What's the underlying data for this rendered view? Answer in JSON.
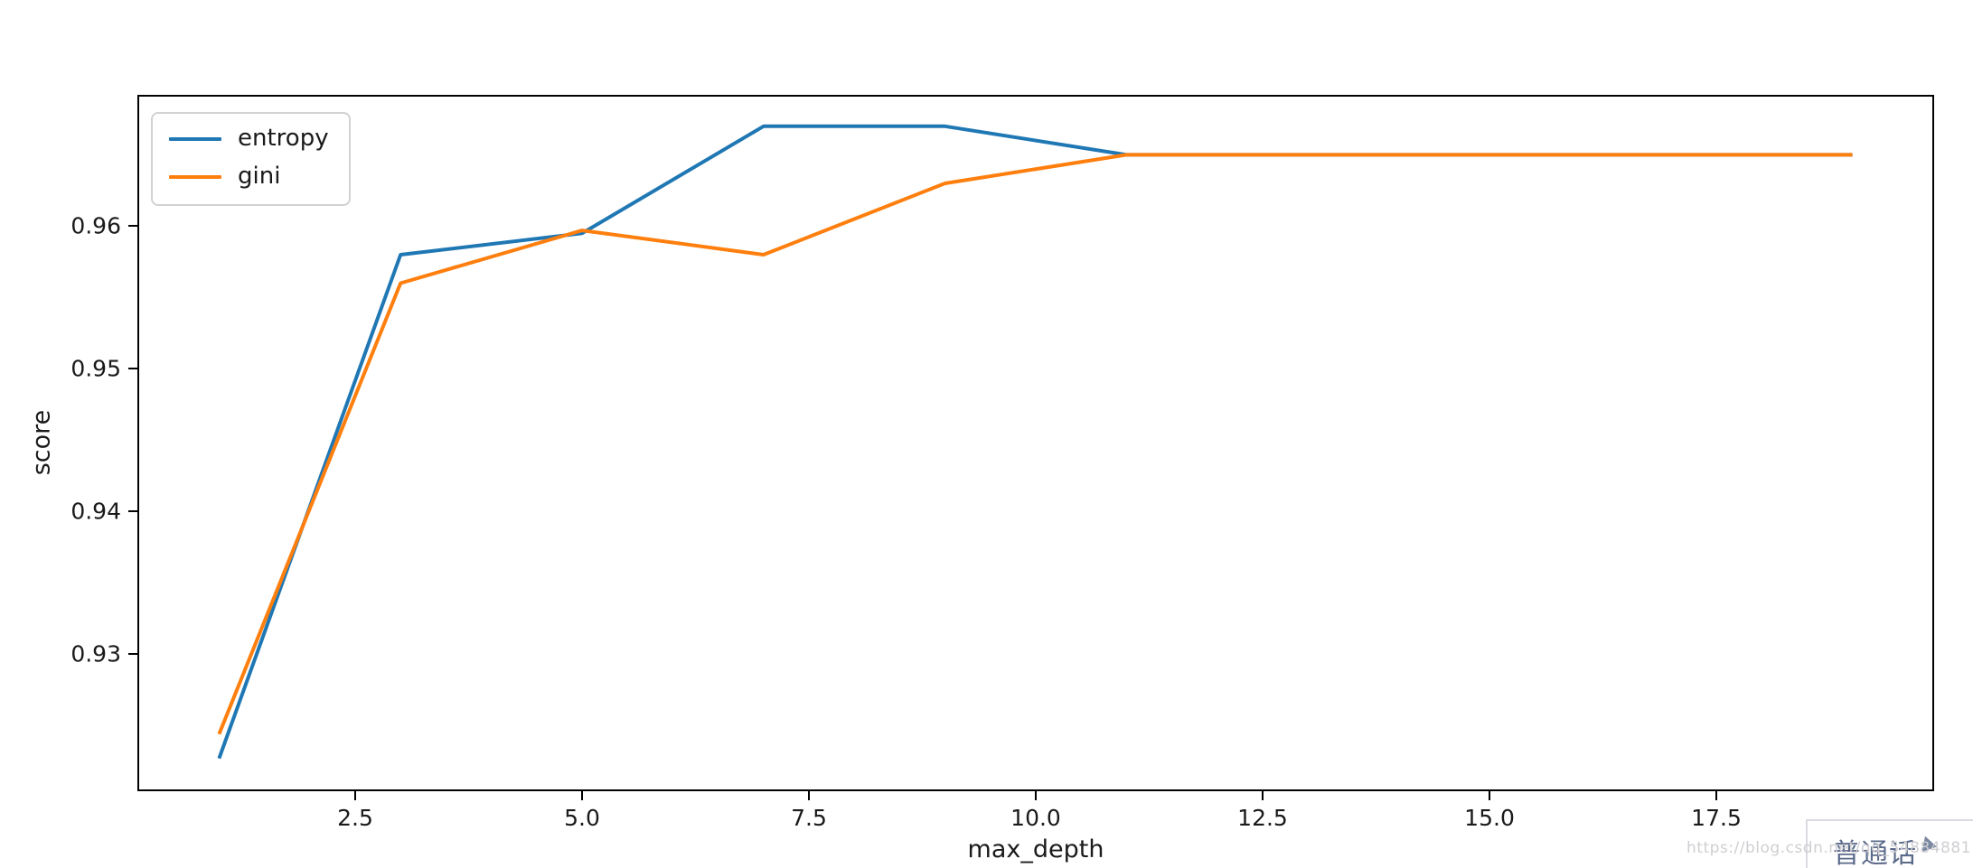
{
  "chart_data": {
    "type": "line",
    "title": "",
    "xlabel": "max_depth",
    "ylabel": "score",
    "x": [
      1,
      3,
      5,
      7,
      9,
      11,
      13,
      15,
      17,
      19
    ],
    "series": [
      {
        "name": "entropy",
        "color": "#1f77b4",
        "values": [
          0.9227,
          0.958,
          0.9595,
          0.967,
          0.967,
          0.965,
          0.965,
          0.965,
          0.965,
          0.965
        ]
      },
      {
        "name": "gini",
        "color": "#ff7f0e",
        "values": [
          0.9244,
          0.956,
          0.9597,
          0.958,
          0.963,
          0.965,
          0.965,
          0.965,
          0.965,
          0.965
        ]
      }
    ],
    "xlim": [
      0.1,
      19.9
    ],
    "ylim": [
      0.9204,
      0.9692
    ],
    "xticks": [
      2.5,
      5.0,
      7.5,
      10.0,
      12.5,
      15.0,
      17.5
    ],
    "xtick_labels": [
      "2.5",
      "5.0",
      "7.5",
      "10.0",
      "12.5",
      "15.0",
      "17.5"
    ],
    "yticks": [
      0.93,
      0.94,
      0.95,
      0.96
    ],
    "ytick_labels": [
      "0.93",
      "0.94",
      "0.95",
      "0.96"
    ],
    "legend_position": "upper left",
    "legend_entries": [
      "entropy",
      "gini"
    ],
    "grid": false
  },
  "overlay": {
    "watermark": "https://blog.csdn.net/qq_54884881",
    "watermark_color": "#d0ced2",
    "button_label": "普通话",
    "button_icon": "play-triangle",
    "button_text_color": "#5b6a8a",
    "button_border_color": "#dadce2"
  }
}
